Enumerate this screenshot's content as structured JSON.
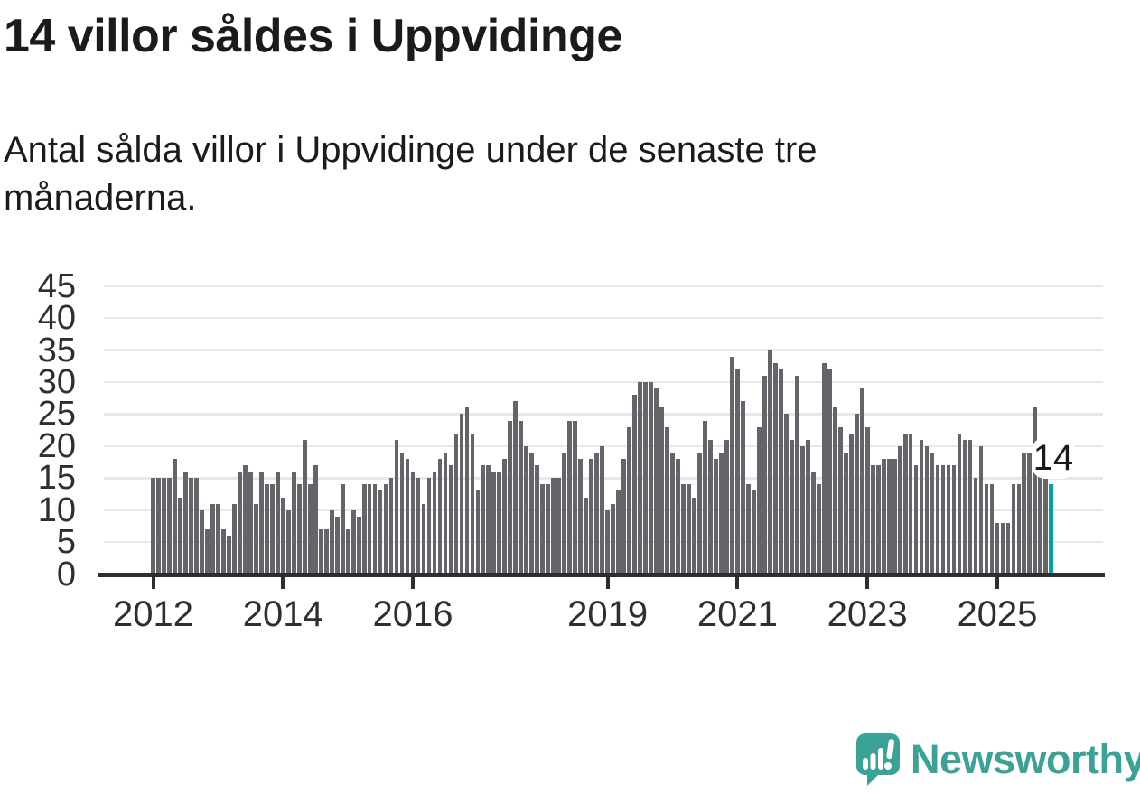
{
  "header": {
    "title": "14 villor såldes i Uppvidinge",
    "subtitle": "Antal sålda villor i Uppvidinge under de senaste tre månaderna."
  },
  "chart_data": {
    "type": "bar",
    "title": "14 villor såldes i Uppvidinge",
    "start_month": "2012-01",
    "end_month": "2025-11",
    "values": [
      15,
      15,
      15,
      15,
      18,
      12,
      16,
      15,
      15,
      10,
      7,
      11,
      11,
      7,
      6,
      11,
      16,
      17,
      16,
      11,
      16,
      14,
      14,
      16,
      12,
      10,
      16,
      14,
      21,
      14,
      17,
      7,
      7,
      10,
      9,
      14,
      7,
      10,
      9,
      14,
      14,
      14,
      13,
      14,
      15,
      21,
      19,
      18,
      16,
      15,
      11,
      15,
      16,
      18,
      19,
      17,
      22,
      25,
      26,
      22,
      13,
      17,
      17,
      16,
      16,
      18,
      24,
      27,
      24,
      20,
      19,
      17,
      14,
      14,
      15,
      15,
      19,
      24,
      24,
      18,
      12,
      18,
      19,
      20,
      10,
      11,
      13,
      18,
      23,
      28,
      30,
      30,
      30,
      29,
      26,
      23,
      19,
      18,
      14,
      14,
      12,
      19,
      24,
      21,
      18,
      19,
      21,
      34,
      32,
      27,
      14,
      13,
      23,
      31,
      35,
      33,
      32,
      25,
      21,
      31,
      20,
      21,
      16,
      14,
      33,
      32,
      26,
      23,
      19,
      22,
      25,
      29,
      23,
      17,
      17,
      18,
      18,
      18,
      20,
      22,
      22,
      17,
      21,
      20,
      19,
      17,
      17,
      17,
      17,
      22,
      21,
      21,
      15,
      20,
      14,
      14,
      8,
      8,
      8,
      14,
      14,
      19,
      19,
      26,
      16,
      15,
      14
    ],
    "highlight_last": true,
    "last_value_label": "14",
    "yticks": [
      0,
      5,
      10,
      15,
      20,
      25,
      30,
      35,
      40,
      45
    ],
    "ylim": [
      0,
      45
    ],
    "xticks": [
      2012,
      2014,
      2016,
      2019,
      2021,
      2023,
      2025
    ],
    "grid": true,
    "legend": "none",
    "colors": {
      "bar": "#64646a",
      "highlight": "#00a3a3",
      "gridline": "#e8e8e8",
      "axis": "#2e2e2e",
      "text": "#1b1b1b"
    }
  },
  "annotation": {
    "last_value_label": "14"
  },
  "logo": {
    "text": "Newsworthy",
    "color": "#3aa296",
    "icon": "newsworthy-chart-bubble-icon"
  }
}
